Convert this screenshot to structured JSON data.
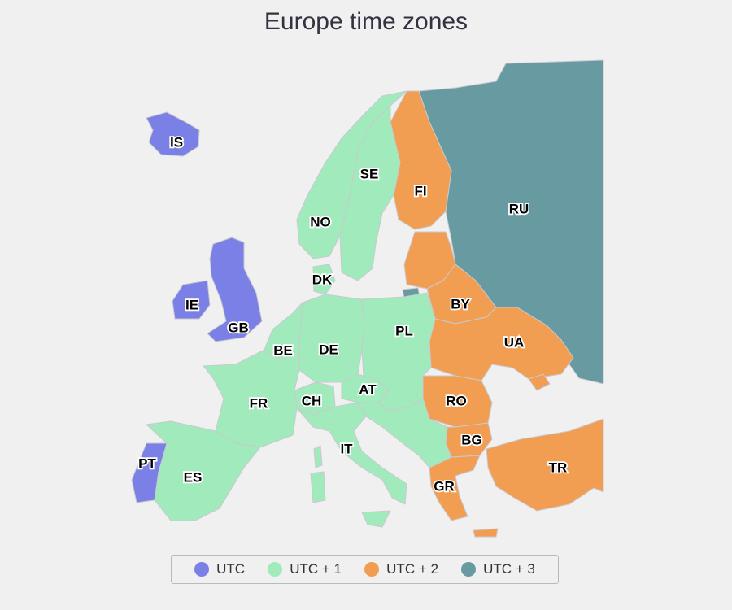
{
  "title": "Europe time zones",
  "zones": [
    {
      "id": "utc",
      "label": "UTC",
      "color": "#7b80e6"
    },
    {
      "id": "utc1",
      "label": "UTC + 1",
      "color": "#a1eabc"
    },
    {
      "id": "utc2",
      "label": "UTC + 2",
      "color": "#f19e53"
    },
    {
      "id": "utc3",
      "label": "UTC + 3",
      "color": "#689aa2"
    }
  ],
  "countries": [
    {
      "code": "IS",
      "zone": "utc"
    },
    {
      "code": "IE",
      "zone": "utc"
    },
    {
      "code": "GB",
      "zone": "utc"
    },
    {
      "code": "PT",
      "zone": "utc"
    },
    {
      "code": "NO",
      "zone": "utc1"
    },
    {
      "code": "SE",
      "zone": "utc1"
    },
    {
      "code": "DK",
      "zone": "utc1"
    },
    {
      "code": "DE",
      "zone": "utc1"
    },
    {
      "code": "PL",
      "zone": "utc1"
    },
    {
      "code": "BE",
      "zone": "utc1"
    },
    {
      "code": "FR",
      "zone": "utc1"
    },
    {
      "code": "CH",
      "zone": "utc1"
    },
    {
      "code": "AT",
      "zone": "utc1"
    },
    {
      "code": "IT",
      "zone": "utc1"
    },
    {
      "code": "ES",
      "zone": "utc1"
    },
    {
      "code": "FI",
      "zone": "utc2"
    },
    {
      "code": "BY",
      "zone": "utc2"
    },
    {
      "code": "UA",
      "zone": "utc2"
    },
    {
      "code": "RO",
      "zone": "utc2"
    },
    {
      "code": "BG",
      "zone": "utc2"
    },
    {
      "code": "GR",
      "zone": "utc2"
    },
    {
      "code": "TR",
      "zone": "utc2"
    },
    {
      "code": "RU",
      "zone": "utc3"
    }
  ]
}
